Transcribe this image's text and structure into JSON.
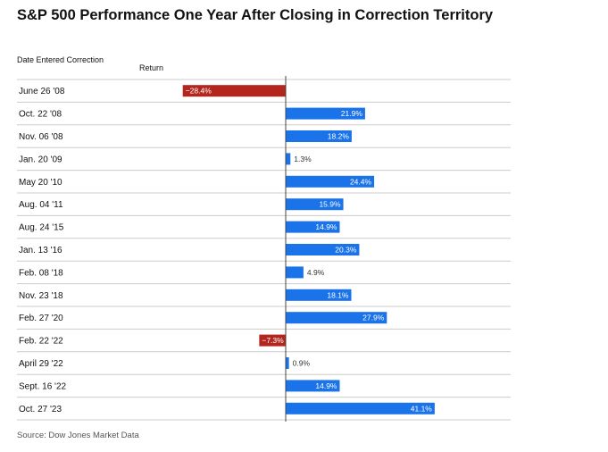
{
  "title": "S&P 500 Performance One Year After Closing in Correction Territory",
  "headers": {
    "date": "Date Entered Correction",
    "return": "Return"
  },
  "source": "Source: Dow Jones Market Data",
  "colors": {
    "positive": "#1a73e8",
    "negative": "#b3261e",
    "gridline": "#cccccc",
    "axis": "#444444"
  },
  "chart_data": {
    "type": "bar",
    "orientation": "horizontal",
    "categories": [
      "June 26 '08",
      "Oct. 22 '08",
      "Nov. 06 '08",
      "Jan. 20 '09",
      "May 20 '10",
      "Aug. 04 '11",
      "Aug. 24 '15",
      "Jan. 13 '16",
      "Feb. 08 '18",
      "Nov. 23 '18",
      "Feb. 27 '20",
      "Feb. 22 '22",
      "April 29 '22",
      "Sept. 16 '22",
      "Oct. 27 '23"
    ],
    "values": [
      -28.4,
      21.9,
      18.2,
      1.3,
      24.4,
      15.9,
      14.9,
      20.3,
      4.9,
      18.1,
      27.9,
      -7.3,
      0.9,
      14.9,
      41.1
    ],
    "labels": [
      "−28.4%",
      "21.9%",
      "18.2%",
      "1.3%",
      "24.4%",
      "15.9%",
      "14.9%",
      "20.3%",
      "4.9%",
      "18.1%",
      "27.9%",
      "−7.3%",
      "0.9%",
      "14.9%",
      "41.1%"
    ],
    "xlabel": "",
    "ylabel": "",
    "xlim": [
      -28.4,
      41.1
    ],
    "grid": false,
    "legend": "none"
  }
}
